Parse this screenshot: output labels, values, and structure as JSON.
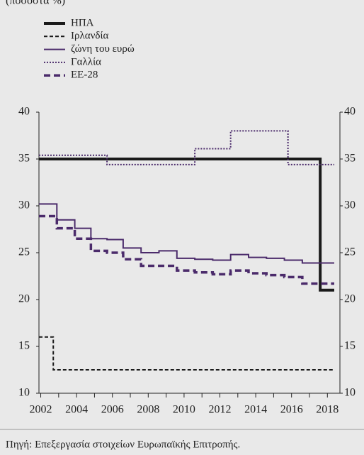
{
  "chart_data": {
    "type": "step",
    "subtitle": "(ποσοστά %)",
    "source": "Πηγή: Επεξεργασία στοιχείων Ευρωπαϊκής Επιτροπής.",
    "xlim": [
      2001.9,
      2018.7
    ],
    "xticks": [
      2002,
      2004,
      2006,
      2008,
      2010,
      2012,
      2014,
      2016,
      2018
    ],
    "xminorticks": [
      2003,
      2005,
      2007,
      2009,
      2011,
      2013,
      2015,
      2017
    ],
    "ylim": [
      10,
      40
    ],
    "yticks": [
      10,
      15,
      20,
      25,
      30,
      35,
      40
    ],
    "y2lim": [
      10,
      40
    ],
    "y2ticks": [
      10,
      15,
      20,
      25,
      30,
      35,
      40
    ],
    "series": [
      {
        "name": "ΗΠΑ",
        "color": "#1a1a1a",
        "style": "solid",
        "width": 4,
        "x": [
          2001.9,
          2017.6
        ],
        "values": [
          35,
          21
        ]
      },
      {
        "name": "Ιρλανδία",
        "color": "#1a1a1a",
        "style": "dashed",
        "width": 2,
        "x": [
          2001.9,
          2002.7
        ],
        "values": [
          16,
          12.5
        ]
      },
      {
        "name": "ζώνη του ευρώ",
        "color": "#4b2b6b",
        "style": "solid",
        "width": 2,
        "x": [
          2001.9,
          2002.9,
          2003.9,
          2004.8,
          2005.7,
          2006.6,
          2007.6,
          2008.6,
          2009.6,
          2010.6,
          2011.6,
          2012.6,
          2013.6,
          2014.6,
          2015.6,
          2016.6
        ],
        "values": [
          30.2,
          28.5,
          27.6,
          26.5,
          26.4,
          25.5,
          25.0,
          25.2,
          24.4,
          24.3,
          24.2,
          24.8,
          24.5,
          24.4,
          24.2,
          23.9
        ]
      },
      {
        "name": "Γαλλία",
        "color": "#4b2b6b",
        "style": "dotted",
        "width": 2,
        "x": [
          2001.9,
          2005.7,
          2010.6,
          2012.6,
          2015.8
        ],
        "values": [
          35.4,
          34.4,
          36.1,
          38.0,
          34.4
        ]
      },
      {
        "name": "ΕΕ-28",
        "color": "#4b2b6b",
        "style": "dashed",
        "width": 3.5,
        "x": [
          2001.9,
          2002.9,
          2003.9,
          2004.8,
          2005.7,
          2006.6,
          2007.6,
          2009.6,
          2010.6,
          2011.6,
          2012.6,
          2013.6,
          2014.6,
          2015.6,
          2016.6
        ],
        "values": [
          28.9,
          27.6,
          26.5,
          25.2,
          25.0,
          24.3,
          23.6,
          23.1,
          22.9,
          22.7,
          23.1,
          22.8,
          22.6,
          22.4,
          21.7
        ]
      }
    ]
  }
}
